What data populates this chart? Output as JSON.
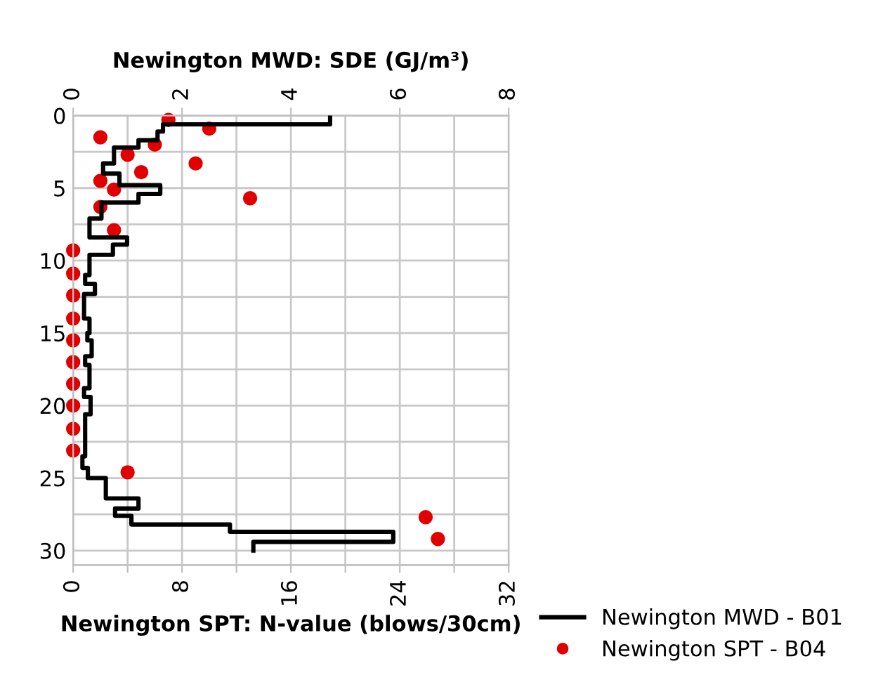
{
  "chart_data": {
    "type": "line",
    "x2label": "Newington MWD: SDE (GJ/m³)",
    "xlabel": "Newington SPT: N-value (blows/30cm)",
    "ylim": [
      31,
      0
    ],
    "yticks": [
      0,
      {
        "value": 2.5,
        "label": null
      },
      5,
      {
        "value": 7.5,
        "label": null
      },
      10,
      {
        "value": 12.5,
        "label": null
      },
      15,
      {
        "value": 17.5,
        "label": null
      },
      20,
      {
        "value": 22.5,
        "label": null
      },
      25,
      {
        "value": 27.5,
        "label": null
      },
      30
    ],
    "xlim": [
      0,
      32
    ],
    "xticks": [
      0,
      {
        "value": 4,
        "label": null
      },
      8,
      {
        "value": 12,
        "label": null
      },
      16,
      {
        "value": 20,
        "label": null
      },
      24,
      {
        "value": 28,
        "label": null
      },
      32
    ],
    "x2lim": [
      0,
      8
    ],
    "x2ticks": [
      0,
      2,
      4,
      6,
      8
    ],
    "grid": true,
    "legend": "bottom right",
    "series": [
      {
        "name": "Newington MWD - B01",
        "axis": "x2",
        "color": "#000000",
        "line_style": "solid",
        "marker": "none",
        "x": [
          4.72,
          4.72,
          1.65,
          1.65,
          1.55,
          1.55,
          1.2,
          1.2,
          0.75,
          0.75,
          0.55,
          0.55,
          0.85,
          0.85,
          1.6,
          1.6,
          1.2,
          1.2,
          0.52,
          0.52,
          0.3,
          0.3,
          0.99,
          0.99,
          0.73,
          0.73,
          0.3,
          0.3,
          0.22,
          0.22,
          0.4,
          0.4,
          0.2,
          0.2,
          0.3,
          0.3,
          0.26,
          0.26,
          0.34,
          0.34,
          0.22,
          0.22,
          0.3,
          0.3,
          0.2,
          0.2,
          0.32,
          0.32,
          0.22,
          0.22,
          0.17,
          0.17,
          0.27,
          0.27,
          0.6,
          0.6,
          1.2,
          1.2,
          0.77,
          0.77,
          1.07,
          1.07,
          2.88,
          2.88,
          5.88,
          5.88,
          3.31,
          3.31
        ],
        "values": [
          0,
          0.6,
          0.6,
          1.1,
          1.1,
          1.7,
          1.7,
          2.2,
          2.2,
          3.3,
          3.3,
          4.0,
          4.0,
          4.8,
          4.8,
          5.4,
          5.4,
          6.0,
          6.0,
          7.1,
          7.1,
          8.4,
          8.4,
          8.9,
          8.9,
          9.6,
          9.6,
          11.0,
          11.0,
          11.6,
          11.6,
          12.3,
          12.3,
          14.0,
          14.0,
          15.0,
          15.0,
          15.5,
          15.5,
          16.6,
          16.6,
          17.2,
          17.2,
          18.8,
          18.8,
          19.4,
          19.4,
          20.6,
          20.6,
          23.5,
          23.5,
          24.3,
          24.3,
          25.0,
          25.0,
          26.4,
          26.4,
          27.1,
          27.1,
          27.6,
          27.6,
          28.2,
          28.2,
          28.7,
          28.7,
          29.4,
          29.4,
          30.0
        ]
      },
      {
        "name": "Newington SPT - B04",
        "type": "scatter",
        "color": "#e00000",
        "marker": "circle",
        "x": [
          7,
          10,
          2,
          6,
          4,
          9,
          5,
          2,
          3,
          13,
          2,
          3,
          0,
          0,
          0,
          0,
          0,
          0,
          0,
          0,
          0,
          0,
          4,
          25.9,
          26.8
        ],
        "values": [
          0.3,
          0.9,
          1.5,
          2.0,
          2.7,
          3.3,
          3.9,
          4.5,
          5.1,
          5.7,
          6.3,
          7.9,
          9.3,
          10.9,
          12.4,
          14.0,
          15.5,
          17.0,
          18.5,
          20.0,
          21.6,
          23.1,
          24.6,
          27.7,
          29.2
        ]
      }
    ]
  }
}
